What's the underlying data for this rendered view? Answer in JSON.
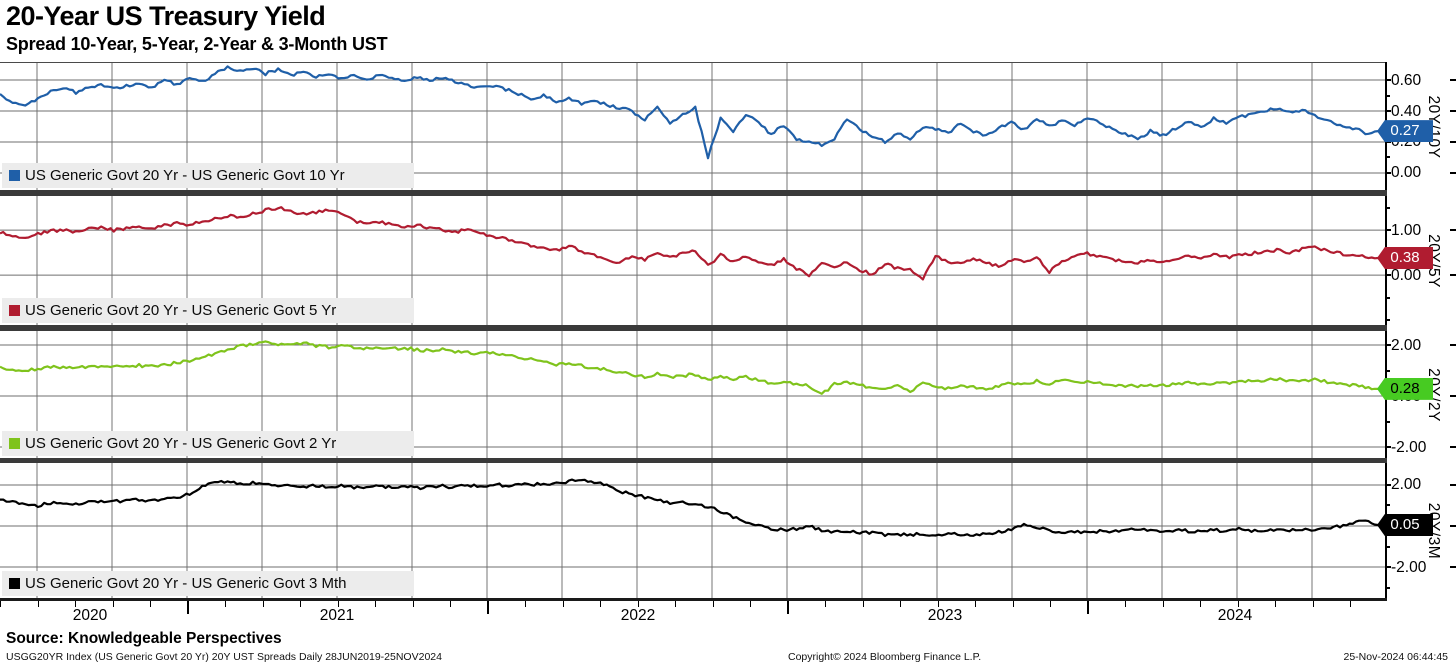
{
  "header": {
    "title": "20-Year US Treasury Yield",
    "subtitle": "Spread 10-Year, 5-Year, 2-Year & 3-Month UST"
  },
  "footer": {
    "source_label": "Source:",
    "source_value": "Knowledgeable Perspectives",
    "meta_left": "USGG20YR Index (US Generic Govt 20 Yr) 20Y UST Spreads  Daily 28JUN2019-25NOV2024",
    "meta_center": "Copyright© 2024 Bloomberg Finance L.P.",
    "meta_right": "25-Nov-2024 06:44:45"
  },
  "x_axis": {
    "year_labels": [
      "2020",
      "2021",
      "2022",
      "2023",
      "2024"
    ],
    "date_range": "28JUN2019-25NOV2024"
  },
  "chart_data": [
    {
      "type": "line",
      "legend": "US Generic Govt 20 Yr - US Generic Govt 10 Yr",
      "axis_title": "20Y/10Y",
      "color": "#1f5fa8",
      "badge_value": "0.27",
      "badge_text_color": "#ffffff",
      "last_value": 0.27,
      "y_ticks": [
        0.6,
        0.4,
        0.2,
        0.0
      ],
      "ylim": [
        -0.11,
        0.71
      ],
      "grid": true,
      "legend_position": "bottom-left",
      "values": [
        0.5,
        0.46,
        0.43,
        0.48,
        0.53,
        0.55,
        0.52,
        0.55,
        0.57,
        0.54,
        0.56,
        0.58,
        0.55,
        0.6,
        0.57,
        0.62,
        0.59,
        0.64,
        0.68,
        0.66,
        0.68,
        0.64,
        0.67,
        0.63,
        0.65,
        0.62,
        0.64,
        0.61,
        0.63,
        0.6,
        0.63,
        0.61,
        0.59,
        0.62,
        0.6,
        0.61,
        0.59,
        0.57,
        0.55,
        0.56,
        0.54,
        0.51,
        0.48,
        0.5,
        0.46,
        0.48,
        0.45,
        0.47,
        0.44,
        0.42,
        0.4,
        0.34,
        0.43,
        0.32,
        0.38,
        0.42,
        0.1,
        0.35,
        0.27,
        0.38,
        0.32,
        0.25,
        0.31,
        0.22,
        0.2,
        0.18,
        0.22,
        0.35,
        0.28,
        0.24,
        0.2,
        0.26,
        0.22,
        0.3,
        0.28,
        0.26,
        0.32,
        0.27,
        0.24,
        0.29,
        0.33,
        0.28,
        0.35,
        0.3,
        0.34,
        0.31,
        0.36,
        0.32,
        0.28,
        0.25,
        0.22,
        0.27,
        0.24,
        0.29,
        0.33,
        0.3,
        0.35,
        0.32,
        0.36,
        0.38,
        0.4,
        0.42,
        0.39,
        0.41,
        0.37,
        0.34,
        0.31,
        0.29,
        0.26,
        0.27
      ]
    },
    {
      "type": "line",
      "legend": "US Generic Govt 20 Yr - US Generic Govt 5 Yr",
      "axis_title": "20Y/5Y",
      "color": "#b01c30",
      "badge_value": "0.38",
      "badge_text_color": "#ffffff",
      "last_value": 0.38,
      "y_ticks": [
        1.0,
        0.0
      ],
      "ylim": [
        -1.11,
        1.76
      ],
      "grid": true,
      "legend_position": "bottom-left",
      "values": [
        0.95,
        0.88,
        0.85,
        0.92,
        0.98,
        1.0,
        0.96,
        1.02,
        1.05,
        1.0,
        1.04,
        1.08,
        1.02,
        1.1,
        1.15,
        1.12,
        1.2,
        1.25,
        1.32,
        1.28,
        1.38,
        1.44,
        1.5,
        1.42,
        1.36,
        1.4,
        1.44,
        1.38,
        1.2,
        1.15,
        1.18,
        1.12,
        1.08,
        1.12,
        1.05,
        1.0,
        0.95,
        1.02,
        0.92,
        0.85,
        0.8,
        0.72,
        0.65,
        0.6,
        0.55,
        0.65,
        0.52,
        0.45,
        0.35,
        0.28,
        0.42,
        0.35,
        0.52,
        0.38,
        0.48,
        0.55,
        0.2,
        0.45,
        0.3,
        0.4,
        0.3,
        0.22,
        0.35,
        0.15,
        -0.02,
        0.25,
        0.18,
        0.28,
        0.12,
        0.02,
        0.25,
        0.15,
        0.12,
        -0.08,
        0.42,
        0.3,
        0.25,
        0.35,
        0.28,
        0.2,
        0.35,
        0.28,
        0.4,
        0.08,
        0.32,
        0.4,
        0.48,
        0.42,
        0.35,
        0.3,
        0.28,
        0.35,
        0.3,
        0.38,
        0.42,
        0.38,
        0.45,
        0.4,
        0.44,
        0.48,
        0.52,
        0.56,
        0.5,
        0.58,
        0.62,
        0.55,
        0.48,
        0.44,
        0.4,
        0.38
      ]
    },
    {
      "type": "line",
      "legend": "US Generic Govt 20 Yr - US Generic Govt 2 Yr",
      "axis_title": "20Y/2Y",
      "color": "#7fc31c",
      "badge_color": "#47cb22",
      "badge_value": "0.28",
      "badge_text_color": "#000000",
      "last_value": 0.28,
      "y_ticks": [
        2.0,
        0.0,
        -2.0
      ],
      "ylim": [
        -2.43,
        2.55
      ],
      "grid": true,
      "legend_position": "bottom-left",
      "values": [
        1.1,
        1.04,
        1.0,
        1.06,
        1.12,
        1.15,
        1.1,
        1.15,
        1.18,
        1.14,
        1.16,
        1.2,
        1.15,
        1.22,
        1.3,
        1.38,
        1.5,
        1.65,
        1.8,
        1.95,
        2.05,
        2.1,
        2.05,
        2.0,
        2.06,
        1.98,
        1.92,
        1.96,
        1.9,
        1.86,
        1.9,
        1.85,
        1.88,
        1.82,
        1.78,
        1.84,
        1.75,
        1.7,
        1.65,
        1.72,
        1.6,
        1.52,
        1.45,
        1.38,
        1.25,
        1.3,
        1.18,
        1.1,
        1.02,
        0.95,
        0.85,
        0.75,
        0.88,
        0.72,
        0.8,
        0.85,
        0.6,
        0.78,
        0.68,
        0.75,
        0.6,
        0.52,
        0.58,
        0.45,
        0.4,
        0.05,
        0.48,
        0.55,
        0.42,
        0.35,
        0.28,
        0.4,
        0.18,
        0.5,
        0.38,
        0.3,
        0.42,
        0.35,
        0.25,
        0.38,
        0.52,
        0.45,
        0.58,
        0.48,
        0.62,
        0.52,
        0.58,
        0.5,
        0.44,
        0.4,
        0.38,
        0.45,
        0.4,
        0.46,
        0.52,
        0.46,
        0.52,
        0.48,
        0.55,
        0.6,
        0.62,
        0.66,
        0.6,
        0.64,
        0.63,
        0.55,
        0.48,
        0.42,
        0.35,
        0.28
      ]
    },
    {
      "type": "line",
      "legend": "US Generic Govt 20 Yr - US Generic Govt 3 Mth",
      "axis_title": "20Y/3M",
      "color": "#000000",
      "badge_value": "0.05",
      "badge_text_color": "#ffffff",
      "last_value": 0.05,
      "y_ticks": [
        2.0,
        0.0,
        -2.0
      ],
      "ylim": [
        -3.51,
        3.07
      ],
      "grid": true,
      "legend_position": "bottom-left",
      "values": [
        1.3,
        1.15,
        1.05,
        1.0,
        1.1,
        1.15,
        1.08,
        1.18,
        1.22,
        1.18,
        1.25,
        1.3,
        1.22,
        1.35,
        1.4,
        1.55,
        1.95,
        2.1,
        2.15,
        2.05,
        2.1,
        2.02,
        1.95,
        2.0,
        1.92,
        1.98,
        1.9,
        1.95,
        1.88,
        1.92,
        1.95,
        1.88,
        1.92,
        1.85,
        1.9,
        1.95,
        1.88,
        2.0,
        1.92,
        2.05,
        1.95,
        2.05,
        2.0,
        2.1,
        2.05,
        2.15,
        2.3,
        2.15,
        1.95,
        1.7,
        1.55,
        1.4,
        1.25,
        1.1,
        1.12,
        1.05,
        0.95,
        0.7,
        0.45,
        0.2,
        0.0,
        -0.15,
        -0.2,
        -0.15,
        0.05,
        -0.25,
        -0.3,
        -0.25,
        -0.35,
        -0.3,
        -0.45,
        -0.4,
        -0.44,
        -0.38,
        -0.42,
        -0.35,
        -0.4,
        -0.45,
        -0.38,
        -0.3,
        -0.2,
        0.1,
        -0.05,
        -0.25,
        -0.35,
        -0.28,
        -0.32,
        -0.25,
        -0.3,
        -0.22,
        -0.12,
        -0.22,
        -0.28,
        -0.18,
        -0.25,
        -0.3,
        -0.2,
        -0.26,
        -0.16,
        -0.22,
        -0.25,
        -0.18,
        -0.24,
        -0.15,
        -0.2,
        -0.12,
        -0.02,
        0.12,
        0.28,
        0.05
      ]
    }
  ]
}
